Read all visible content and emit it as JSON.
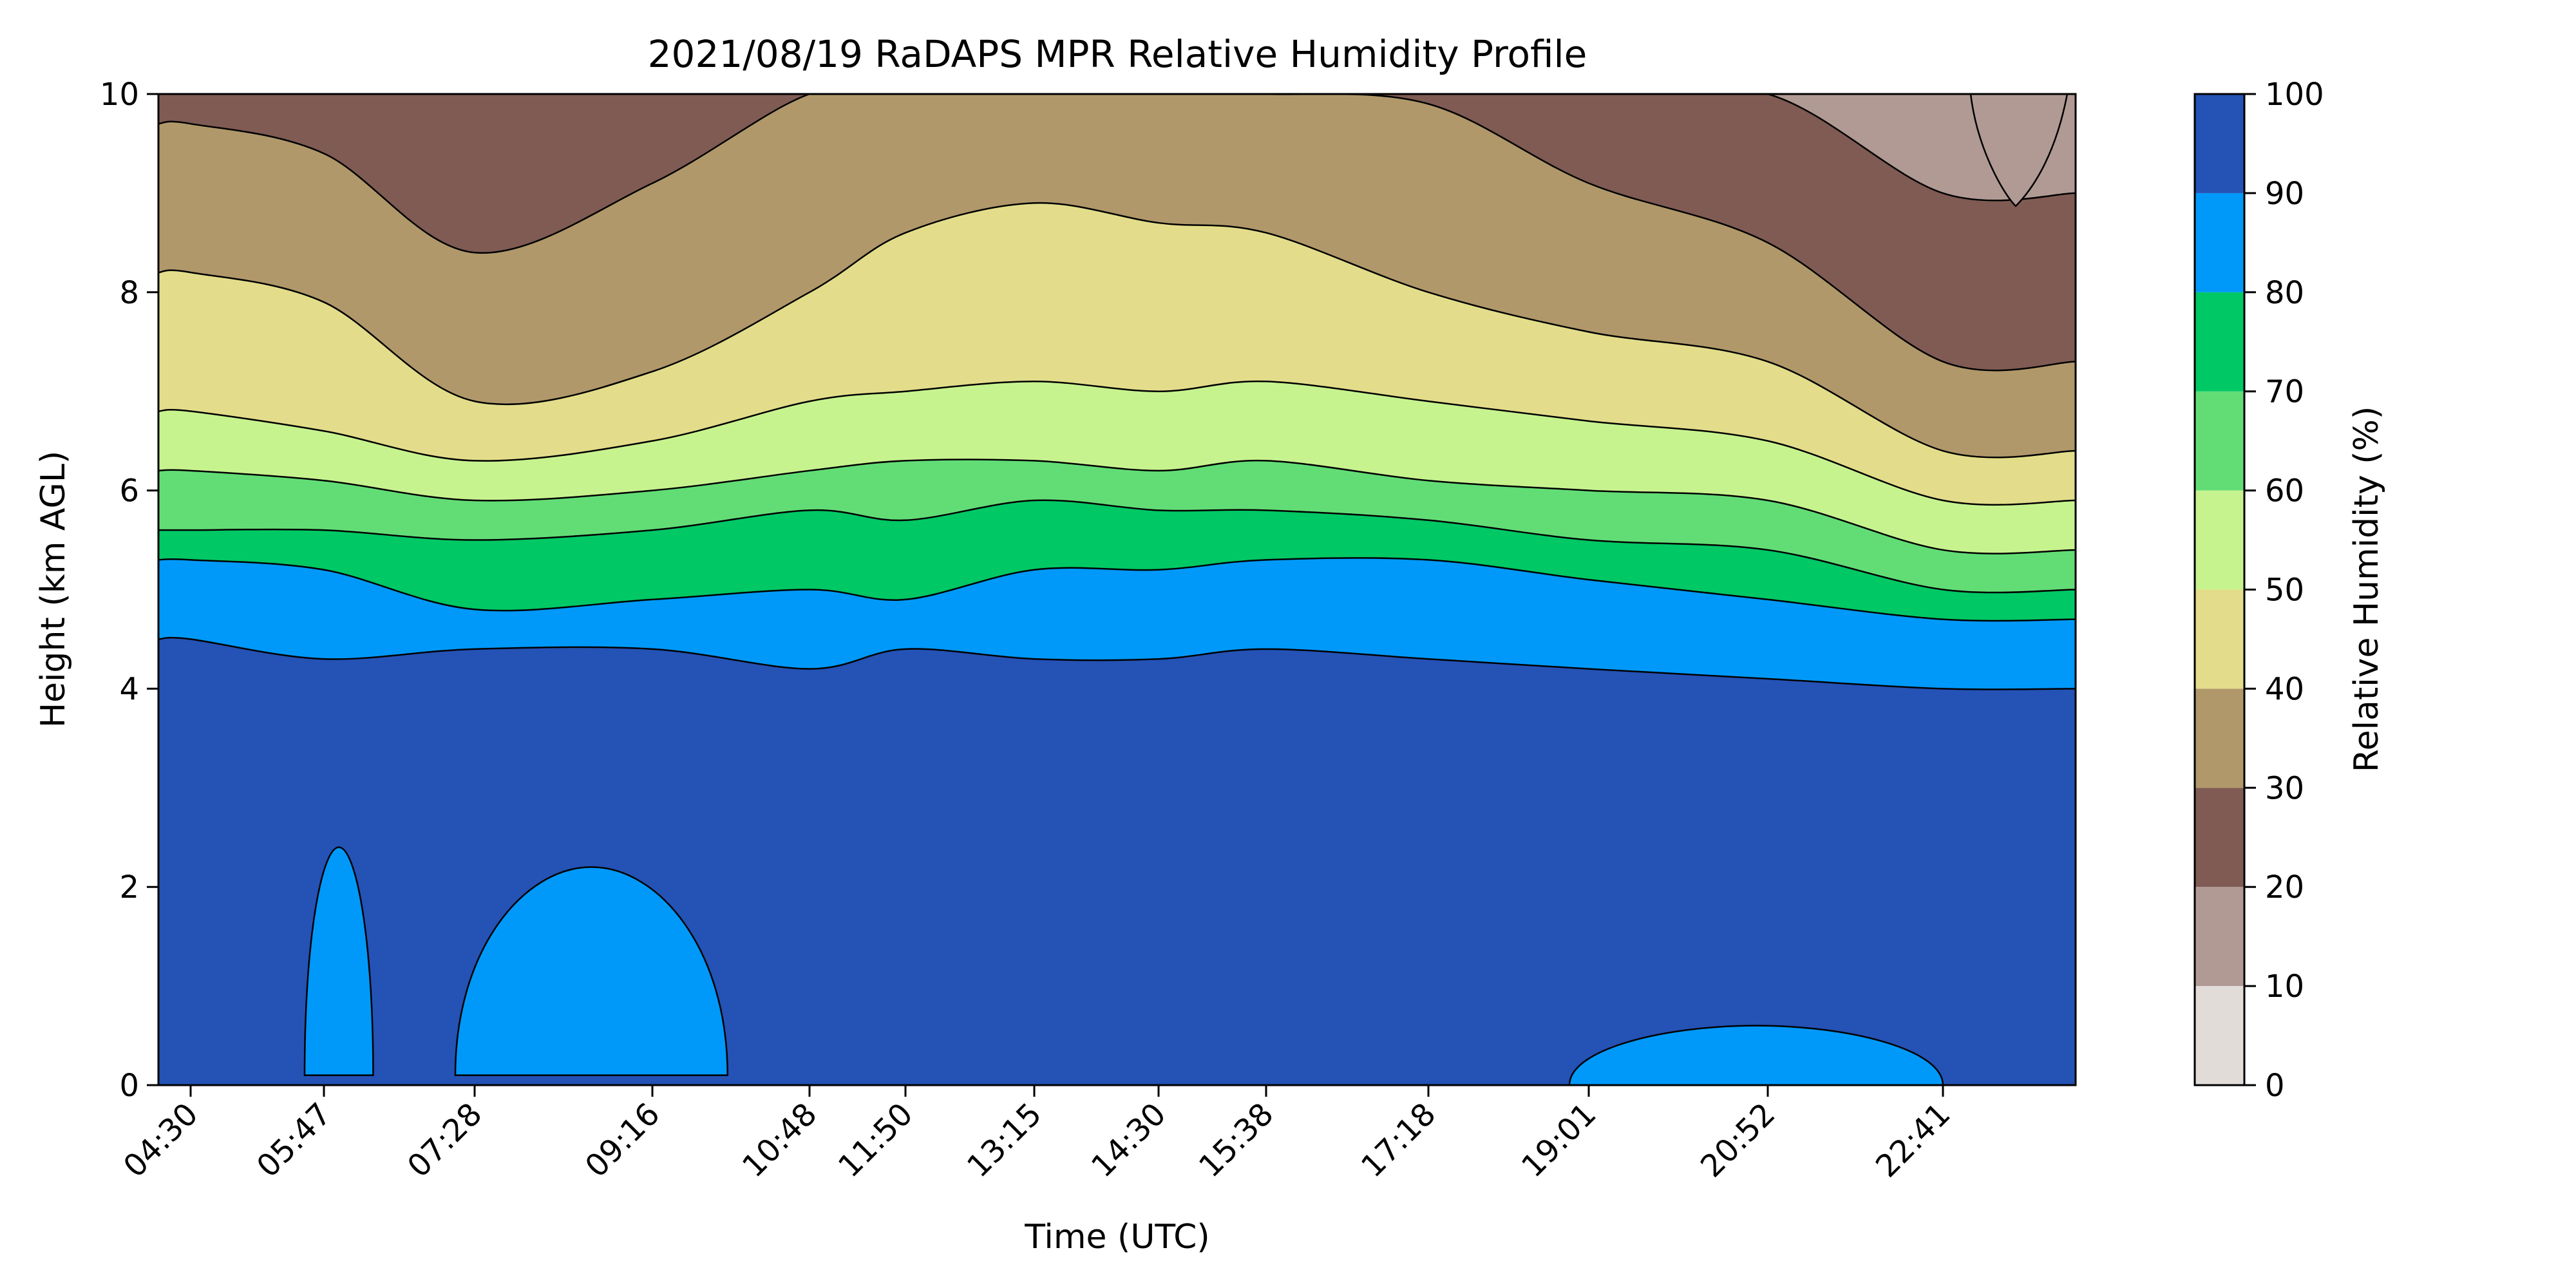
{
  "chart_data": {
    "type": "heatmap",
    "subtype": "filled-contour",
    "title": "2021/08/19 RaDAPS MPR Relative Humidity Profile",
    "xlabel": "Time (UTC)",
    "ylabel": "Height (km AGL)",
    "x_tick_labels": [
      "04:30",
      "05:47",
      "07:28",
      "09:16",
      "10:48",
      "11:50",
      "13:15",
      "14:30",
      "15:38",
      "17:18",
      "19:01",
      "20:52",
      "22:41"
    ],
    "ylim": [
      0,
      10
    ],
    "y_ticks": [
      0,
      2,
      4,
      6,
      8,
      10
    ],
    "colorbar": {
      "label": "Relative Humidity (%)",
      "range": [
        0,
        100
      ],
      "ticks": [
        0,
        10,
        20,
        30,
        40,
        50,
        60,
        70,
        80,
        90,
        100
      ],
      "levels": [
        {
          "range": [
            0,
            10
          ],
          "color": "#e2dcd9"
        },
        {
          "range": [
            10,
            20
          ],
          "color": "#b19a94"
        },
        {
          "range": [
            20,
            30
          ],
          "color": "#7f5b53"
        },
        {
          "range": [
            30,
            40
          ],
          "color": "#b0986a"
        },
        {
          "range": [
            40,
            50
          ],
          "color": "#e3dd8b"
        },
        {
          "range": [
            50,
            60
          ],
          "color": "#c7f38f"
        },
        {
          "range": [
            60,
            70
          ],
          "color": "#62dd76"
        },
        {
          "range": [
            70,
            80
          ],
          "color": "#00c865"
        },
        {
          "range": [
            80,
            90
          ],
          "color": "#0099f9"
        },
        {
          "range": [
            90,
            100
          ],
          "color": "#2452b5"
        }
      ]
    },
    "contour_boundaries_km": {
      "x_positions": [
        "04:30",
        "05:47",
        "07:28",
        "09:16",
        "10:48",
        "11:50",
        "13:15",
        "14:30",
        "15:38",
        "17:18",
        "19:01",
        "20:52",
        "22:41"
      ],
      "rh_90": [
        4.5,
        4.3,
        4.4,
        4.4,
        4.2,
        4.4,
        4.3,
        4.3,
        4.4,
        4.3,
        4.2,
        4.1,
        4.0
      ],
      "rh_80": [
        5.3,
        5.2,
        4.8,
        4.9,
        5.0,
        4.9,
        5.2,
        5.2,
        5.3,
        5.3,
        5.1,
        4.9,
        4.7
      ],
      "rh_70": [
        5.6,
        5.6,
        5.5,
        5.6,
        5.8,
        5.7,
        5.9,
        5.8,
        5.8,
        5.7,
        5.5,
        5.4,
        5.0
      ],
      "rh_60": [
        6.2,
        6.1,
        5.9,
        6.0,
        6.2,
        6.3,
        6.3,
        6.2,
        6.3,
        6.1,
        6.0,
        5.9,
        5.4
      ],
      "rh_50": [
        6.8,
        6.6,
        6.3,
        6.5,
        6.9,
        7.0,
        7.1,
        7.0,
        7.1,
        6.9,
        6.7,
        6.5,
        5.9
      ],
      "rh_40": [
        8.2,
        7.9,
        6.9,
        7.2,
        8.0,
        8.6,
        8.9,
        8.7,
        8.6,
        8.0,
        7.6,
        7.3,
        6.4
      ],
      "rh_30": [
        9.7,
        9.4,
        8.4,
        9.1,
        10.0,
        10.0,
        10.0,
        10.0,
        10.0,
        9.9,
        9.1,
        8.5,
        7.3
      ],
      "rh_20": [
        10.0,
        10.0,
        10.0,
        10.0,
        10.0,
        10.0,
        10.0,
        10.0,
        10.0,
        10.0,
        10.0,
        10.0,
        9.0
      ]
    },
    "low_level_drier_regions": [
      {
        "name": "morning-lower-moist-patch",
        "x_range": [
          "05:47",
          "06:20"
        ],
        "height_km": [
          0.1,
          2.4
        ],
        "rh_level": "80-90"
      },
      {
        "name": "morning-mid-patch",
        "x_range": [
          "07:28",
          "10:00"
        ],
        "height_km": [
          0.1,
          2.2
        ],
        "rh_level": "80-90"
      },
      {
        "name": "evening-surface-patch",
        "x_range": [
          "19:01",
          "23:30"
        ],
        "height_km": [
          0.0,
          0.6
        ],
        "rh_level": "80-90"
      }
    ]
  }
}
